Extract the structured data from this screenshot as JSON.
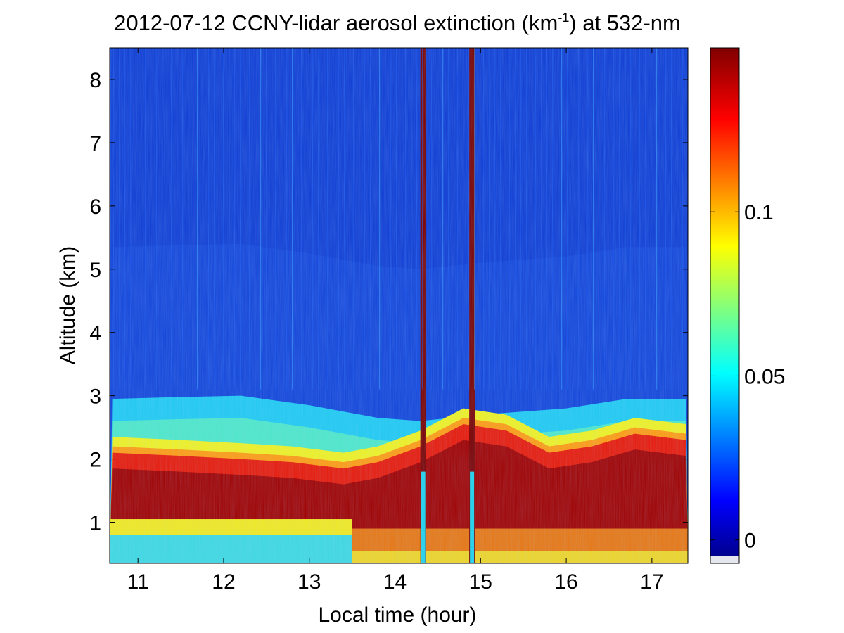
{
  "chart_data": {
    "type": "heatmap",
    "title_prefix": "2012-07-12 CCNY-lidar aerosol extinction (km",
    "title_superscript": "-1",
    "title_suffix": ") at 532-nm",
    "xlabel": "Local time (hour)",
    "ylabel": "Altitude (km)",
    "xlim": [
      10.67,
      17.42
    ],
    "ylim": [
      0.35,
      8.5
    ],
    "x_ticks": [
      11,
      12,
      13,
      14,
      15,
      16,
      17
    ],
    "y_ticks": [
      1,
      2,
      3,
      4,
      5,
      6,
      7,
      8
    ],
    "colorbar": {
      "colormap": "jet",
      "range": [
        -0.005,
        0.15
      ],
      "ticks": [
        0,
        0.05,
        0.1
      ],
      "tick_labels": [
        "0",
        "0.05",
        "0.1"
      ]
    },
    "features": {
      "boundary_layer_top_km": [
        {
          "x": 10.7,
          "y": 2.95
        },
        {
          "x": 11.5,
          "y": 2.98
        },
        {
          "x": 12.2,
          "y": 3.0
        },
        {
          "x": 13.0,
          "y": 2.85
        },
        {
          "x": 13.8,
          "y": 2.65
        },
        {
          "x": 14.3,
          "y": 2.6
        },
        {
          "x": 15.0,
          "y": 2.7
        },
        {
          "x": 16.0,
          "y": 2.8
        },
        {
          "x": 16.7,
          "y": 2.95
        },
        {
          "x": 17.4,
          "y": 2.95
        }
      ],
      "dense_layer_top_km": [
        {
          "x": 10.7,
          "y": 2.1
        },
        {
          "x": 11.5,
          "y": 2.05
        },
        {
          "x": 12.2,
          "y": 2.0
        },
        {
          "x": 12.8,
          "y": 1.95
        },
        {
          "x": 13.4,
          "y": 1.85
        },
        {
          "x": 13.8,
          "y": 1.95
        },
        {
          "x": 14.3,
          "y": 2.2
        },
        {
          "x": 14.8,
          "y": 2.55
        },
        {
          "x": 15.3,
          "y": 2.45
        },
        {
          "x": 15.8,
          "y": 2.1
        },
        {
          "x": 16.3,
          "y": 2.2
        },
        {
          "x": 16.8,
          "y": 2.4
        },
        {
          "x": 17.4,
          "y": 2.3
        }
      ],
      "near_surface_clear_region": {
        "x_start": 13.5,
        "cloud_columns_hour": [
          14.33,
          14.9
        ]
      }
    }
  }
}
